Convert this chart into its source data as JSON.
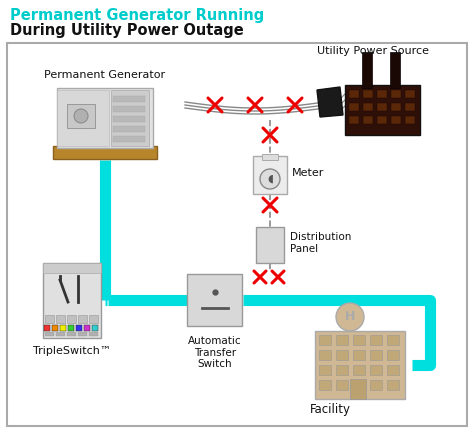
{
  "title_line1": "Permanent Generator Running",
  "title_line2": "During Utility Power Outage",
  "title_color1": "#00CCCC",
  "title_color2": "#111111",
  "bg_color": "#FFFFFF",
  "cyan_color": "#00DEDE",
  "red_color": "#EE0000",
  "fig_w": 4.74,
  "fig_h": 4.33,
  "dpi": 100,
  "labels": {
    "generator": "Permanent Generator",
    "utility": "Utility Power Source",
    "meter": "Meter",
    "distribution": "Distribution\nPanel",
    "tripleswitch": "TripleSwitch™",
    "ats": "Automatic\nTransfer\nSwitch",
    "facility": "Facility"
  }
}
